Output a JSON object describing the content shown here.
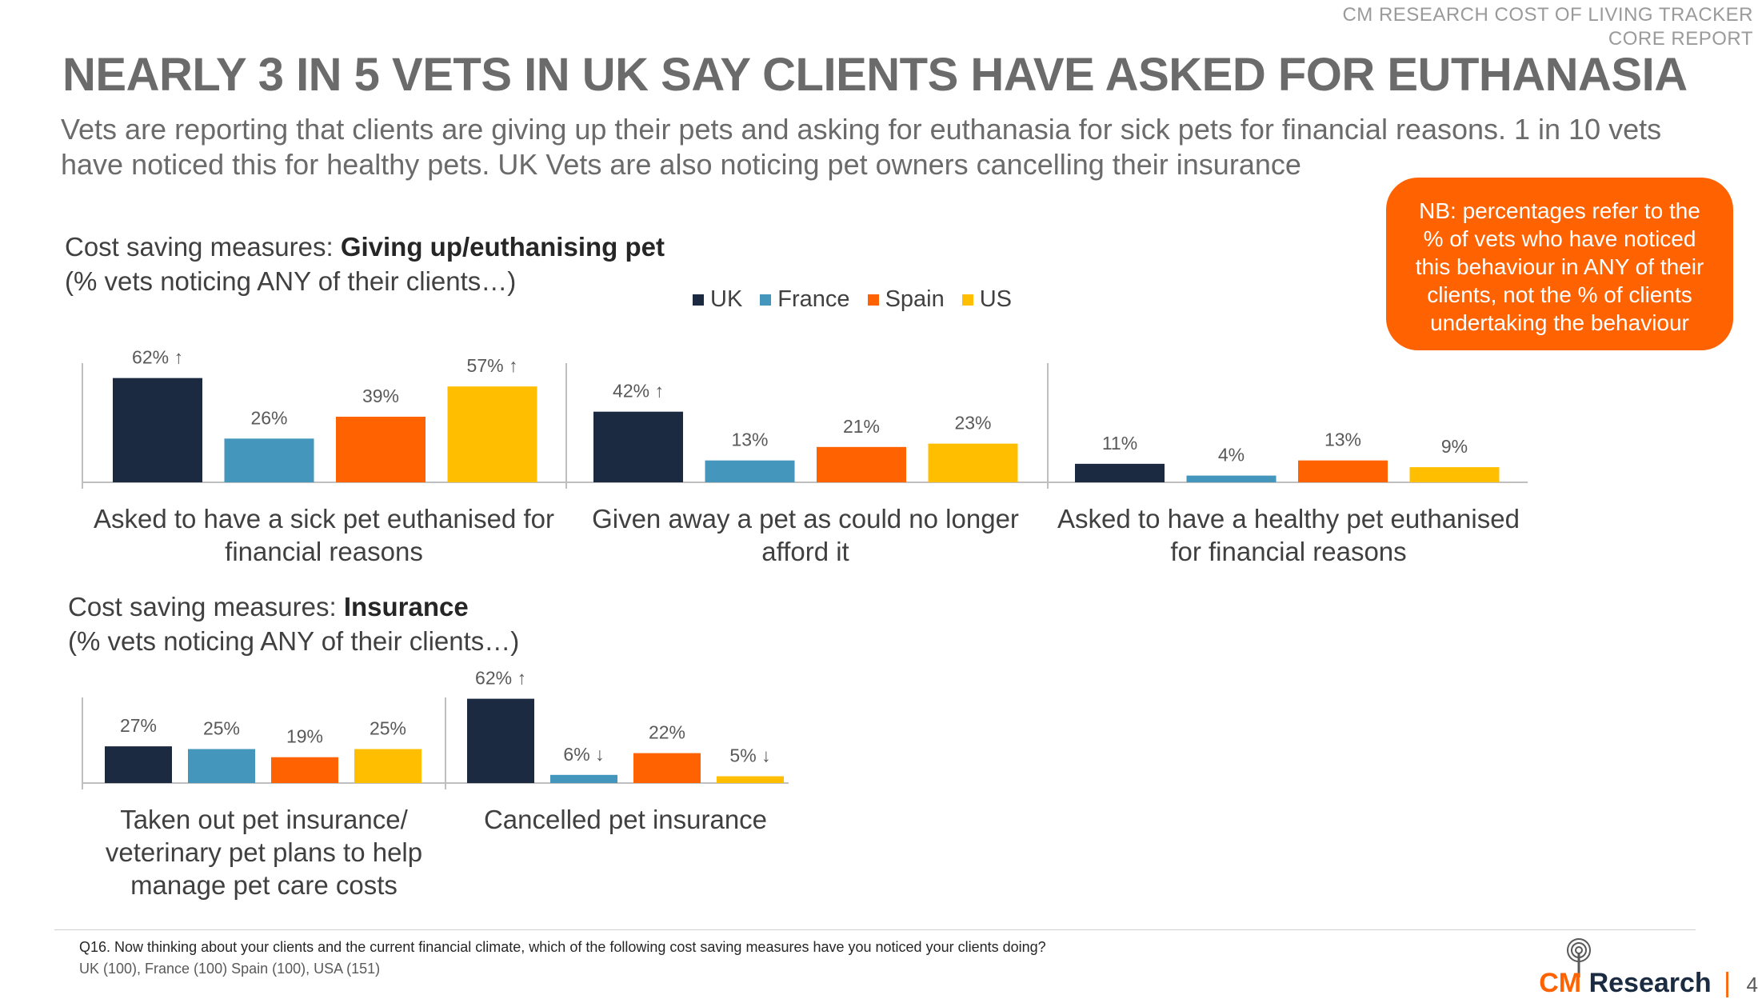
{
  "header": {
    "tracker_line1": "CM RESEARCH COST OF LIVING TRACKER",
    "tracker_line2": "CORE REPORT",
    "title": "NEARLY 3 IN 5 VETS IN UK SAY CLIENTS HAVE ASKED FOR EUTHANASIA",
    "subtitle": "Vets are reporting that clients are giving up their pets and asking for euthanasia for sick pets for financial reasons. 1 in 10 vets have noticed this for healthy pets. UK Vets are also noticing pet owners cancelling their insurance"
  },
  "note": "NB: percentages refer to the % of vets who have noticed this behaviour in ANY of their clients, not the % of clients undertaking the behaviour",
  "section1": {
    "prefix": "Cost saving measures: ",
    "bold": "Giving up/euthanising pet",
    "sub": "(% vets noticing ANY of their clients…)"
  },
  "section2": {
    "prefix": "Cost saving measures: ",
    "bold": "Insurance",
    "sub": "(% vets noticing ANY of their clients…)"
  },
  "legend": [
    {
      "name": "UK",
      "color": "#1b2a41"
    },
    {
      "name": "France",
      "color": "#4596bd"
    },
    {
      "name": "Spain",
      "color": "#ff6200"
    },
    {
      "name": "US",
      "color": "#ffbf00"
    }
  ],
  "chart_data": [
    {
      "type": "bar",
      "categories": [
        "Asked to have a sick pet euthanised for financial reasons",
        "Given away a pet as could no longer afford it",
        "Asked to have a healthy pet euthanised for financial reasons"
      ],
      "series": [
        {
          "name": "UK",
          "values": [
            62,
            42,
            11
          ],
          "labels": [
            "62% ↑",
            "42% ↑",
            "11%"
          ]
        },
        {
          "name": "France",
          "values": [
            26,
            13,
            4
          ],
          "labels": [
            "26%",
            "13%",
            "4%"
          ]
        },
        {
          "name": "Spain",
          "values": [
            39,
            21,
            13
          ],
          "labels": [
            "39%",
            "21%",
            "13%"
          ]
        },
        {
          "name": "US",
          "values": [
            57,
            23,
            9
          ],
          "labels": [
            "57% ↑",
            "23%",
            "9%"
          ]
        }
      ],
      "ylim": [
        0,
        100
      ]
    },
    {
      "type": "bar",
      "categories": [
        "Taken out pet insurance/ veterinary pet plans to help manage pet care costs",
        "Cancelled pet insurance"
      ],
      "series": [
        {
          "name": "UK",
          "values": [
            27,
            62
          ],
          "labels": [
            "27%",
            "62% ↑"
          ]
        },
        {
          "name": "France",
          "values": [
            25,
            6
          ],
          "labels": [
            "25%",
            "6% ↓"
          ]
        },
        {
          "name": "Spain",
          "values": [
            19,
            22
          ],
          "labels": [
            "19%",
            "22%"
          ]
        },
        {
          "name": "US",
          "values": [
            25,
            5
          ],
          "labels": [
            "25%",
            "5% ↓"
          ]
        }
      ],
      "ylim": [
        0,
        100
      ]
    }
  ],
  "footer": {
    "question": "Q16. Now thinking about your clients and the current financial climate, which of the following cost saving measures have you noticed your clients doing?",
    "bases": "UK (100),  France (100) Spain (100), USA (151)",
    "logo_cm": "CM",
    "logo_research": "Research",
    "logo_bar": "|",
    "page": "4"
  }
}
